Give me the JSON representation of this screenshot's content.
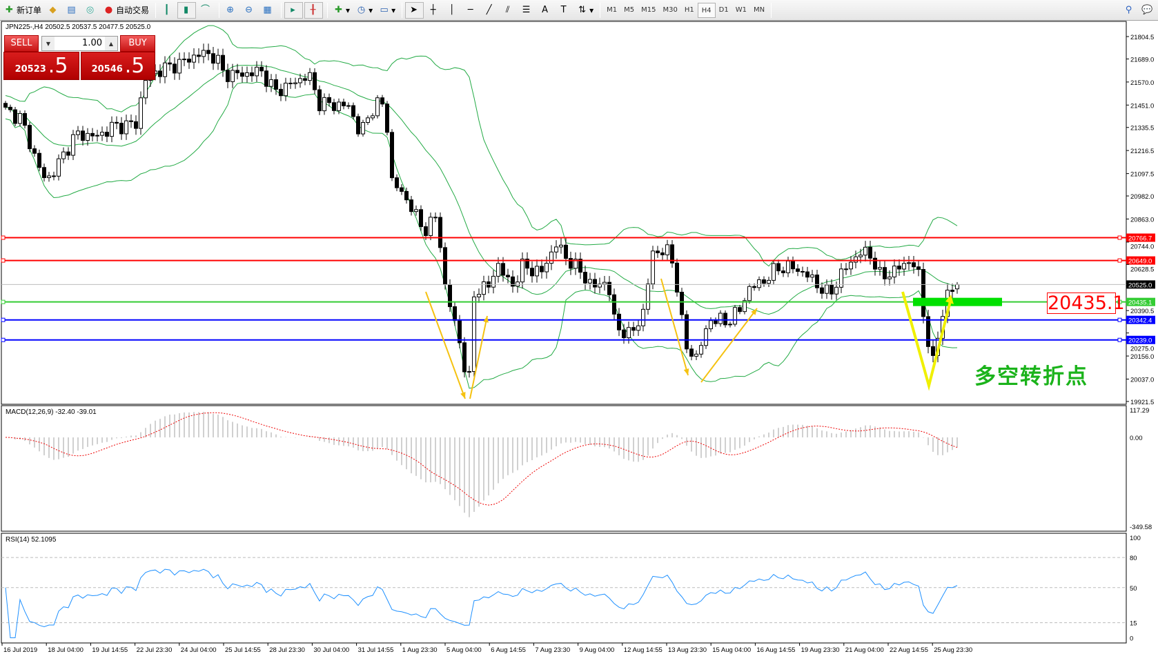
{
  "toolbar": {
    "new_order": "新订单",
    "auto_trading": "自动交易",
    "timeframes": [
      "M1",
      "M5",
      "M15",
      "M30",
      "H1",
      "H4",
      "D1",
      "W1",
      "MN"
    ],
    "active_timeframe": "H4"
  },
  "chart_header": "JPN225-,H4  20502.5 20537.5 20477.5 20525.0",
  "trade_panel": {
    "sell_label": "SELL",
    "buy_label": "BUY",
    "lot": "1.00",
    "sell_price_main": "20523",
    "sell_price_pips": ".5",
    "buy_price_main": "20546",
    "buy_price_pips": ".5"
  },
  "annotations": {
    "big_level": "20435.1",
    "turning_point_text": "多空转折点"
  },
  "chart_data": {
    "type": "candlestick",
    "symbol": "JPN225-",
    "timeframe": "H4",
    "last_bar": {
      "open": 20502.5,
      "high": 20537.5,
      "low": 20477.5,
      "close": 20525.0
    },
    "price_ticks": [
      "21804.5",
      "21689.0",
      "21570.0",
      "21451.0",
      "21335.5",
      "21216.5",
      "21097.5",
      "20982.0",
      "20863.0",
      "20744.0",
      "20628.5",
      "20390.5",
      "20275.0",
      "20156.0",
      "20037.0",
      "19921.5"
    ],
    "ylim": [
      19921.5,
      21804.5
    ],
    "levels": [
      {
        "price": 20766.7,
        "label": "20766.7",
        "color": "#ff0000"
      },
      {
        "price": 20649.0,
        "label": "20649.0",
        "color": "#ff0000"
      },
      {
        "price": 20525.0,
        "label": "20525.0",
        "color": "#000000",
        "kind": "bid"
      },
      {
        "price": 20435.1,
        "label": "20435.1",
        "color": "#33cc33"
      },
      {
        "price": 20342.4,
        "label": "20342.4",
        "color": "#0000ff"
      },
      {
        "price": 20239.0,
        "label": "20239.0",
        "color": "#0000ff"
      }
    ],
    "indicators": {
      "bollinger": {
        "color": "#22aa44"
      },
      "macd": {
        "label": "MACD(12,26,9) -32.40 -39.01",
        "ticks": [
          "117.29",
          "0.00",
          "-349.58"
        ],
        "ylim": [
          -349.58,
          117.29
        ]
      },
      "rsi": {
        "label": "RSI(14) 52.1095",
        "ticks": [
          "100",
          "80",
          "50",
          "15",
          "0"
        ],
        "levels": [
          80,
          50,
          15
        ]
      }
    },
    "time_labels": [
      "16 Jul 2019",
      "18 Jul 04:00",
      "19 Jul 14:55",
      "22 Jul 23:30",
      "24 Jul 04:00",
      "25 Jul 14:55",
      "28 Jul 23:30",
      "30 Jul 04:00",
      "31 Jul 14:55",
      "1 Aug 23:30",
      "5 Aug 04:00",
      "6 Aug 14:55",
      "7 Aug 23:30",
      "9 Aug 04:00",
      "12 Aug 14:55",
      "13 Aug 23:30",
      "15 Aug 04:00",
      "16 Aug 14:55",
      "19 Aug 23:30",
      "21 Aug 04:00",
      "22 Aug 14:55",
      "25 Aug 23:30"
    ]
  }
}
